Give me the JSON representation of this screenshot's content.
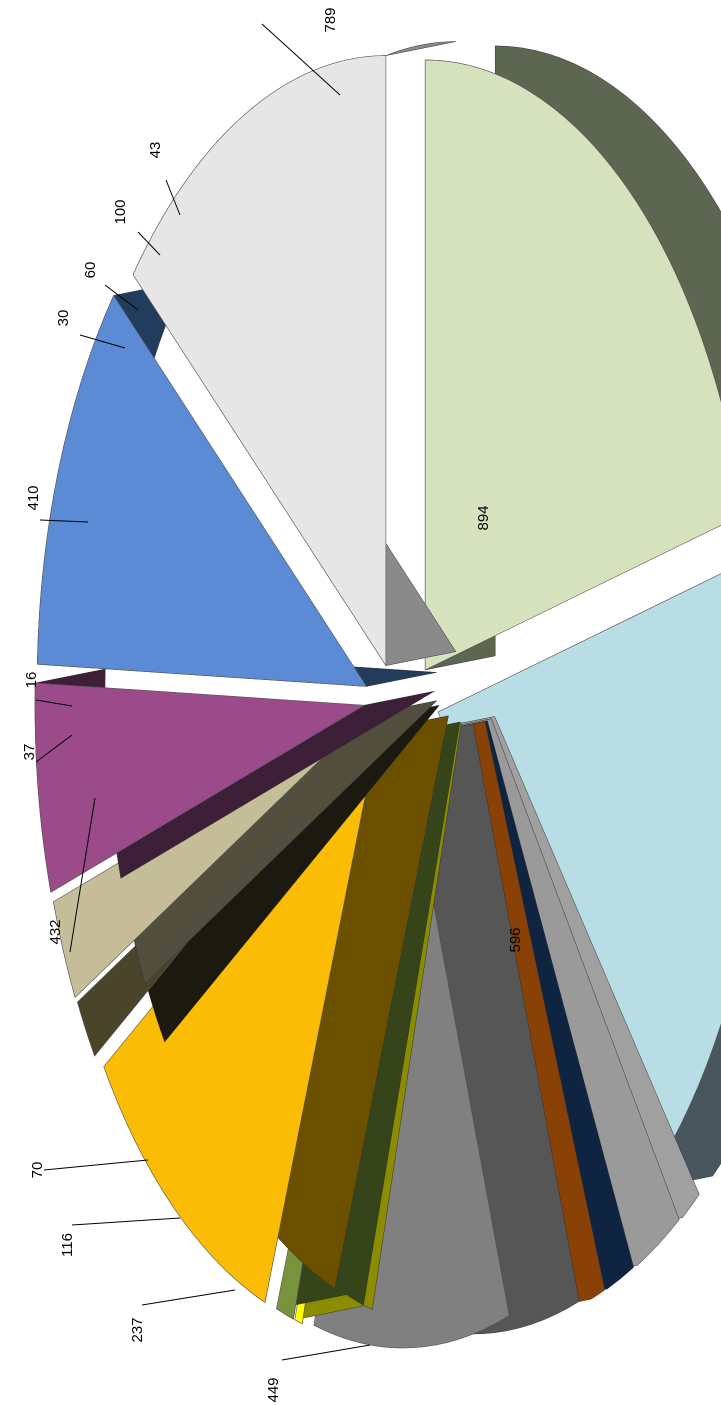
{
  "chart_data": {
    "type": "pie",
    "title": "",
    "style": "3d-exploded",
    "slices": [
      {
        "value": 894,
        "color": "#d5e2bd",
        "side": "#5d6650"
      },
      {
        "value": 789,
        "color": "#b8dde5",
        "side": "#48565d"
      },
      {
        "value": 43,
        "color": "#0000cc",
        "side": "#a0a0a0"
      },
      {
        "value": 100,
        "color": "#fafafa",
        "side": "#9a9a9a"
      },
      {
        "value": 60,
        "color": "#17375e",
        "side": "#0e2440"
      },
      {
        "value": 30,
        "color": "#e46c0a",
        "side": "#8a4106"
      },
      {
        "value": 410,
        "color": "#808080",
        "side": "#565656"
      },
      {
        "value": 16,
        "color": "#ffff00",
        "side": "#8c8c00"
      },
      {
        "value": 37,
        "color": "#77933c",
        "side": "#364519"
      },
      {
        "value": 432,
        "color": "#fbbc05",
        "side": "#6b5000"
      },
      {
        "value": 70,
        "color": "#4a452a",
        "side": "#1c1a10"
      },
      {
        "value": 116,
        "color": "#c4bd97",
        "side": "#524f3e"
      },
      {
        "value": 237,
        "color": "#9b4a8a",
        "side": "#3d1f38"
      },
      {
        "value": 449,
        "color": "#5b8bd5",
        "side": "#223c5e"
      },
      {
        "value": 596,
        "color": "#e6e6e6",
        "side": "#8a8a8a"
      }
    ]
  }
}
